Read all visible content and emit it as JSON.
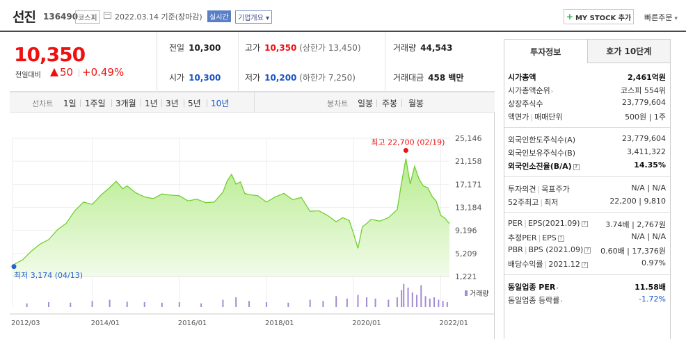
{
  "header": {
    "name": "선진",
    "code": "136490",
    "market": "코스피",
    "date": "2022.03.14 기준(장마감)",
    "realtime": "실시간",
    "company_info": "기업개요",
    "mystock_label": "MY STOCK 추가",
    "quick_order": "빠른주문"
  },
  "price": {
    "current": "10,350",
    "vs_label": "전일대비",
    "change": "50",
    "change_pct": "+0.49%"
  },
  "stats": {
    "prev_label": "전일",
    "prev_value": "10,300",
    "high_label": "고가",
    "high_value": "10,350",
    "high_limit": "(상한가 13,450)",
    "volume_label": "거래량",
    "volume_value": "44,543",
    "open_label": "시가",
    "open_value": "10,300",
    "low_label": "저가",
    "low_value": "10,200",
    "low_limit": "(하한가 7,250)",
    "amount_label": "거래대금",
    "amount_value": "458 백만"
  },
  "period": {
    "line_label": "선차트",
    "items": [
      "1일",
      "1주일",
      "3개월",
      "1년",
      "3년",
      "5년",
      "10년"
    ],
    "active": "10년",
    "bong_label": "봉차트",
    "bong_items": [
      "일봉",
      "주봉",
      "월봉"
    ]
  },
  "chart_data": {
    "type": "area",
    "title": "",
    "xlabel": "",
    "ylabel": "",
    "y_ticks": [
      25146,
      21158,
      17171,
      13184,
      9196,
      5209,
      1221
    ],
    "y_tick_labels": [
      "25,146",
      "21,158",
      "17,171",
      "13,184",
      "9,196",
      "5,209",
      "1,221"
    ],
    "ylim": [
      1221,
      25146
    ],
    "x_tick_labels": [
      "2012/03",
      "2014/01",
      "2016/01",
      "2018/01",
      "2020/01",
      "2022/01"
    ],
    "x_ticks": [
      2012.17,
      2014.0,
      2016.0,
      2018.0,
      2020.0,
      2022.0
    ],
    "xlim": [
      2012.17,
      2022.2
    ],
    "high_label": "최고 22,700 (02/19)",
    "low_label": "최저 3,174 (04/13)",
    "volume_legend": "거래량",
    "series": [
      {
        "x": [
          2012.17,
          2012.4,
          2012.6,
          2012.8,
          2013.0,
          2013.2,
          2013.4,
          2013.6,
          2013.8,
          2014.0,
          2014.2,
          2014.4,
          2014.55,
          2014.7,
          2014.8,
          2015.0,
          2015.2,
          2015.4,
          2015.6,
          2015.8,
          2016.0,
          2016.2,
          2016.4,
          2016.6,
          2016.8,
          2017.0,
          2017.1,
          2017.2,
          2017.3,
          2017.4,
          2017.5,
          2017.6,
          2017.8,
          2018.0,
          2018.2,
          2018.4,
          2018.6,
          2018.8,
          2019.0,
          2019.2,
          2019.4,
          2019.6,
          2019.75,
          2019.9,
          2020.0,
          2020.1,
          2020.2,
          2020.3,
          2020.4,
          2020.6,
          2020.8,
          2021.0,
          2021.1,
          2021.2,
          2021.3,
          2021.4,
          2021.5,
          2021.6,
          2021.7,
          2021.8,
          2021.9,
          2022.0,
          2022.1,
          2022.2
        ],
        "y": [
          3174,
          4100,
          5600,
          6800,
          7600,
          9300,
          10400,
          12600,
          14100,
          13700,
          15300,
          16600,
          17700,
          16400,
          16900,
          15700,
          15000,
          14700,
          15500,
          15300,
          15200,
          14300,
          14600,
          14000,
          14100,
          15800,
          17800,
          18900,
          17200,
          17600,
          15600,
          15400,
          15200,
          14100,
          15000,
          15600,
          14500,
          14900,
          12500,
          12600,
          11800,
          10700,
          11400,
          10900,
          8600,
          6100,
          9800,
          10400,
          11100,
          10800,
          11400,
          12800,
          17400,
          21600,
          17200,
          20300,
          18100,
          16900,
          16600,
          15100,
          14200,
          11800,
          11300,
          10350
        ]
      }
    ],
    "volume": [
      {
        "x": 2012.5,
        "v": 0.15
      },
      {
        "x": 2013.0,
        "v": 0.2
      },
      {
        "x": 2013.5,
        "v": 0.18
      },
      {
        "x": 2014.0,
        "v": 0.25
      },
      {
        "x": 2014.4,
        "v": 0.3
      },
      {
        "x": 2014.8,
        "v": 0.22
      },
      {
        "x": 2015.2,
        "v": 0.2
      },
      {
        "x": 2015.6,
        "v": 0.18
      },
      {
        "x": 2016.0,
        "v": 0.2
      },
      {
        "x": 2016.5,
        "v": 0.15
      },
      {
        "x": 2017.0,
        "v": 0.3
      },
      {
        "x": 2017.3,
        "v": 0.4
      },
      {
        "x": 2017.6,
        "v": 0.25
      },
      {
        "x": 2018.0,
        "v": 0.2
      },
      {
        "x": 2018.5,
        "v": 0.18
      },
      {
        "x": 2019.0,
        "v": 0.3
      },
      {
        "x": 2019.3,
        "v": 0.25
      },
      {
        "x": 2019.6,
        "v": 0.45
      },
      {
        "x": 2019.85,
        "v": 0.35
      },
      {
        "x": 2020.1,
        "v": 0.5
      },
      {
        "x": 2020.3,
        "v": 0.4
      },
      {
        "x": 2020.5,
        "v": 0.35
      },
      {
        "x": 2020.8,
        "v": 0.3
      },
      {
        "x": 2021.0,
        "v": 0.4
      },
      {
        "x": 2021.1,
        "v": 0.7
      },
      {
        "x": 2021.15,
        "v": 0.95
      },
      {
        "x": 2021.25,
        "v": 0.8
      },
      {
        "x": 2021.35,
        "v": 0.6
      },
      {
        "x": 2021.45,
        "v": 0.5
      },
      {
        "x": 2021.55,
        "v": 0.9
      },
      {
        "x": 2021.65,
        "v": 0.45
      },
      {
        "x": 2021.75,
        "v": 0.35
      },
      {
        "x": 2021.85,
        "v": 0.4
      },
      {
        "x": 2021.95,
        "v": 0.3
      },
      {
        "x": 2022.05,
        "v": 0.25
      },
      {
        "x": 2022.15,
        "v": 0.2
      }
    ]
  },
  "panel": {
    "tab_invest": "투자정보",
    "tab_orderbook": "호가 10단계",
    "market_cap_label": "시가총액",
    "market_cap_value": "2,461억원",
    "cap_rank_label": "시가총액순위",
    "cap_rank_value": "코스피 554위",
    "shares_label": "상장주식수",
    "shares_value": "23,779,604",
    "face_label": "액면가",
    "unit_label": "매매단위",
    "face_unit_value": "500원 | 1주",
    "foreign_limit_label": "외국인한도주식수(A)",
    "foreign_limit_value": "23,779,604",
    "foreign_hold_label": "외국인보유주식수(B)",
    "foreign_hold_value": "3,411,322",
    "foreign_ratio_label": "외국인소진율(B/A)",
    "foreign_ratio_value": "14.35%",
    "opinion_label": "투자의견",
    "target_label": "목표주가",
    "opinion_value": "N/A | N/A",
    "week52_label": "52주최고",
    "week52_low_label": "최저",
    "week52_value": "22,200 | 9,810",
    "per_label": "PER",
    "eps_label": "EPS(2021.09)",
    "per_eps_value": "3.74배 | 2,767원",
    "est_per_label": "추정PER",
    "est_eps_label": "EPS",
    "est_value": "N/A | N/A",
    "pbr_label": "PBR",
    "bps_label": "BPS (2021.09)",
    "pbr_bps_value": "0.60배 | 17,376원",
    "div_label": "배당수익률",
    "div_date": "2021.12",
    "div_value": "0.97%",
    "sector_per_label": "동일업종 PER",
    "sector_per_value": "11.58배",
    "sector_rate_label": "동일업종 등락률",
    "sector_rate_value": "-1.72%"
  }
}
